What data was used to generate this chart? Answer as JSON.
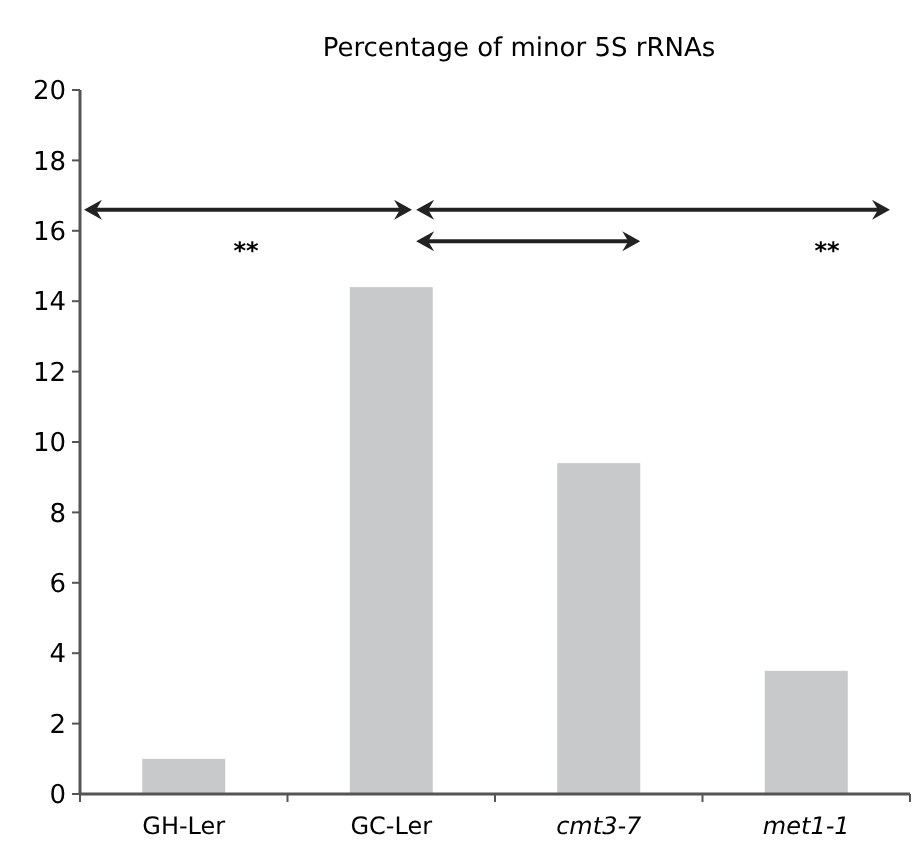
{
  "chart_data": {
    "type": "bar",
    "title": "Percentage of minor 5S rRNAs",
    "categories": [
      "GH-Ler",
      "GC-Ler",
      "cmt3-7",
      "met1-1"
    ],
    "values": [
      1.0,
      14.4,
      9.4,
      3.5
    ],
    "color": "#c8c9cb",
    "ylim": [
      0,
      20
    ],
    "yticks": [
      0,
      2,
      4,
      6,
      8,
      10,
      12,
      14,
      16,
      18,
      20
    ],
    "grid": false,
    "annotations": [
      "**",
      "**"
    ]
  }
}
